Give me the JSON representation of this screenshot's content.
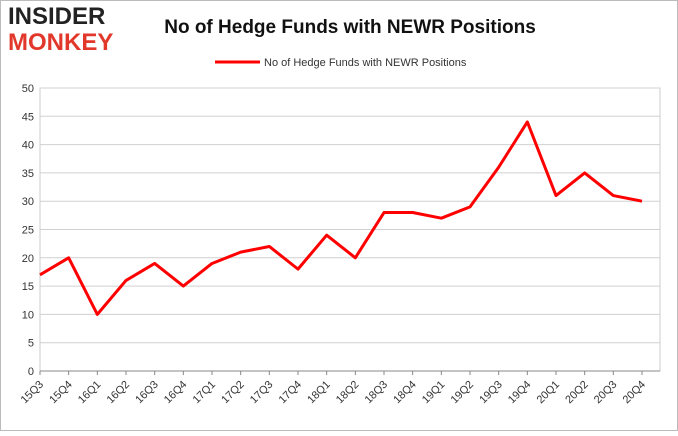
{
  "logo": {
    "line1": "INSIDER",
    "line2": "MONKEY"
  },
  "chart_data": {
    "type": "line",
    "title": "No of Hedge Funds with NEWR Positions",
    "categories": [
      "15Q3",
      "15Q4",
      "16Q1",
      "16Q2",
      "16Q3",
      "16Q4",
      "17Q1",
      "17Q2",
      "17Q3",
      "17Q4",
      "18Q1",
      "18Q2",
      "18Q3",
      "18Q4",
      "19Q1",
      "19Q2",
      "19Q3",
      "19Q4",
      "20Q1",
      "20Q2",
      "20Q3",
      "20Q4"
    ],
    "series": [
      {
        "name": "No of Hedge Funds with NEWR Positions",
        "color": "#ff0000",
        "values": [
          17,
          20,
          10,
          16,
          19,
          15,
          19,
          21,
          22,
          18,
          24,
          20,
          28,
          28,
          27,
          29,
          36,
          44,
          31,
          35,
          31,
          30
        ]
      }
    ],
    "ylim": [
      0,
      50
    ],
    "yticks": [
      0,
      5,
      10,
      15,
      20,
      25,
      30,
      35,
      40,
      45,
      50
    ],
    "grid": true,
    "legend": "top"
  }
}
